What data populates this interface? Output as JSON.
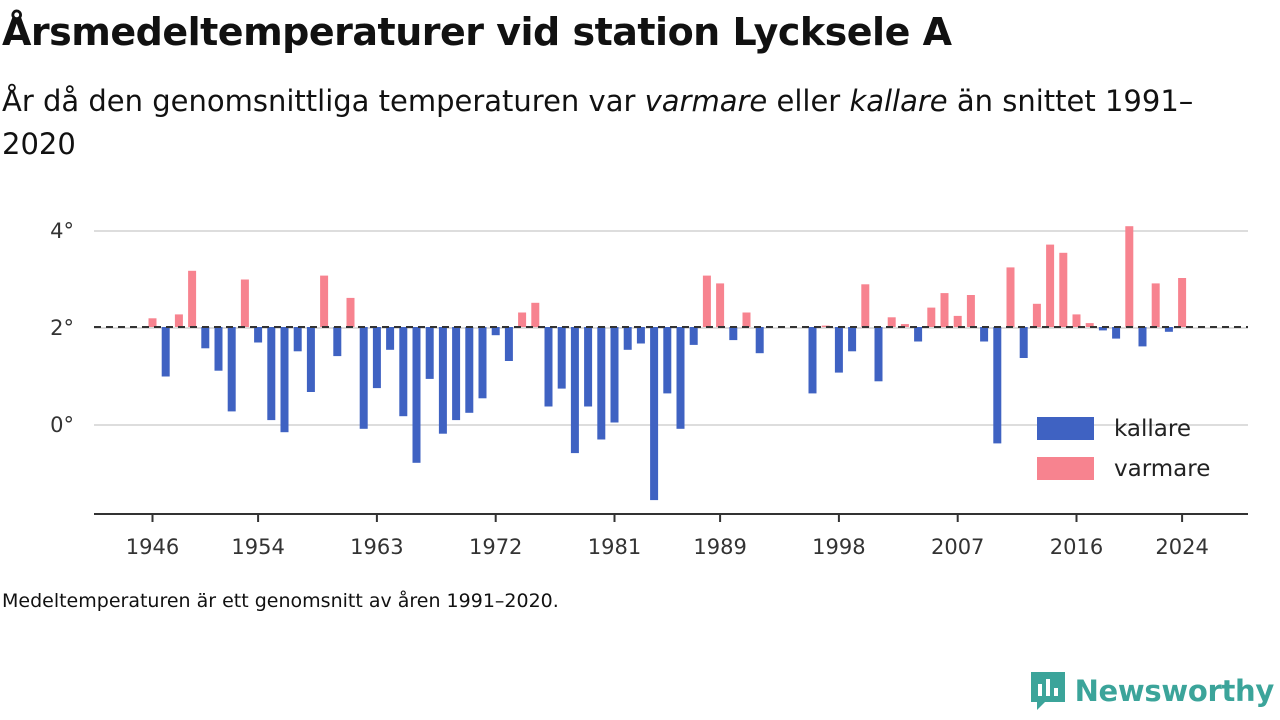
{
  "title": "Årsmedeltemperaturer vid station Lycksele A",
  "subtitle": {
    "part1": "År då den genomsnittliga temperaturen var ",
    "warmer_word": "varmare",
    "part2": " eller ",
    "colder_word": "kallare",
    "part3": " än snittet 1991–2020"
  },
  "note": "Medeltemperaturen är ett genomsnitt av åren 1991–2020.",
  "brand": "Newsworthy",
  "colors": {
    "colder": "#3f62c2",
    "warmer": "#f7838f",
    "baseline": "#333333",
    "grid": "#dddddd",
    "brand": "#3ba49a"
  },
  "chart_data": {
    "type": "bar",
    "baseline": 2.02,
    "ylim": [
      -1.85,
      4.5
    ],
    "yticks": [
      0,
      2,
      4
    ],
    "ytick_labels": [
      "0°",
      "2°",
      "4°"
    ],
    "xticks": [
      1946,
      1954,
      1963,
      1972,
      1981,
      1989,
      1998,
      2007,
      2016,
      2024
    ],
    "xtick_labels": [
      "1946",
      "1954",
      "1963",
      "1972",
      "1981",
      "1989",
      "1998",
      "2007",
      "2016",
      "2024"
    ],
    "legend": {
      "position": "bottom-right",
      "entries": [
        {
          "key": "colder",
          "label": "kallare"
        },
        {
          "key": "warmer",
          "label": "varmare"
        }
      ]
    },
    "years": [
      1946,
      1947,
      1948,
      1949,
      1950,
      1951,
      1952,
      1953,
      1954,
      1955,
      1956,
      1957,
      1958,
      1959,
      1960,
      1961,
      1962,
      1963,
      1964,
      1965,
      1966,
      1967,
      1968,
      1969,
      1970,
      1971,
      1972,
      1973,
      1974,
      1975,
      1976,
      1977,
      1978,
      1979,
      1980,
      1981,
      1982,
      1983,
      1984,
      1985,
      1986,
      1987,
      1988,
      1989,
      1990,
      1991,
      1992,
      1993,
      1994,
      1995,
      1996,
      1997,
      1998,
      1999,
      2000,
      2001,
      2002,
      2003,
      2004,
      2005,
      2006,
      2007,
      2008,
      2009,
      2010,
      2011,
      2012,
      2013,
      2014,
      2015,
      2016,
      2017,
      2018,
      2019,
      2020,
      2021,
      2022,
      2023,
      2024
    ],
    "values": [
      2.2,
      1.0,
      2.28,
      3.18,
      1.58,
      1.12,
      0.28,
      3.0,
      1.7,
      0.1,
      -0.15,
      1.52,
      0.68,
      3.08,
      1.42,
      2.62,
      -0.08,
      0.76,
      1.55,
      0.18,
      -0.78,
      0.95,
      -0.18,
      0.1,
      0.25,
      0.55,
      1.85,
      1.32,
      2.32,
      2.52,
      0.38,
      0.75,
      -0.58,
      0.38,
      -0.3,
      0.05,
      1.55,
      1.68,
      -1.55,
      0.65,
      -0.08,
      1.65,
      3.08,
      2.92,
      1.75,
      2.32,
      1.48,
      null,
      null,
      null,
      0.65,
      2.05,
      1.08,
      1.52,
      2.9,
      0.9,
      2.22,
      2.08,
      1.72,
      2.42,
      2.72,
      2.25,
      2.68,
      1.72,
      -0.38,
      3.25,
      1.38,
      2.5,
      3.72,
      3.55,
      2.28,
      2.1,
      1.95,
      1.78,
      4.1,
      1.62,
      2.92,
      1.92,
      3.03
    ]
  }
}
